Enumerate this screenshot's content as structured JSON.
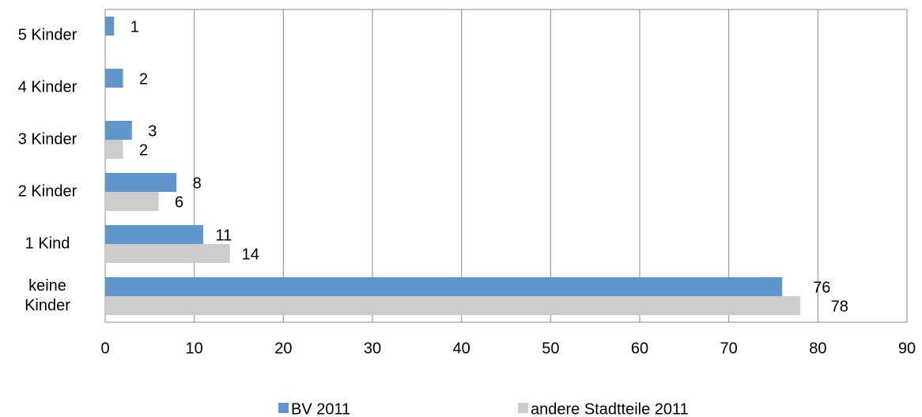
{
  "chart_data": {
    "type": "bar",
    "orientation": "horizontal",
    "categories": [
      "5 Kinder",
      "4 Kinder",
      "3 Kinder",
      "2 Kinder",
      "1 Kind",
      "keine\nKinder"
    ],
    "series": [
      {
        "name": "BV 2011",
        "color": "#6096cc",
        "values": [
          1,
          2,
          3,
          8,
          11,
          76
        ]
      },
      {
        "name": "andere Stadtteile 2011",
        "color": "#cccccc",
        "values": [
          null,
          null,
          2,
          6,
          14,
          78
        ]
      }
    ],
    "xlim": [
      0,
      90
    ],
    "xticks": [
      0,
      10,
      20,
      30,
      40,
      50,
      60,
      70,
      80,
      90
    ],
    "grid": true,
    "legend": "bottom"
  }
}
